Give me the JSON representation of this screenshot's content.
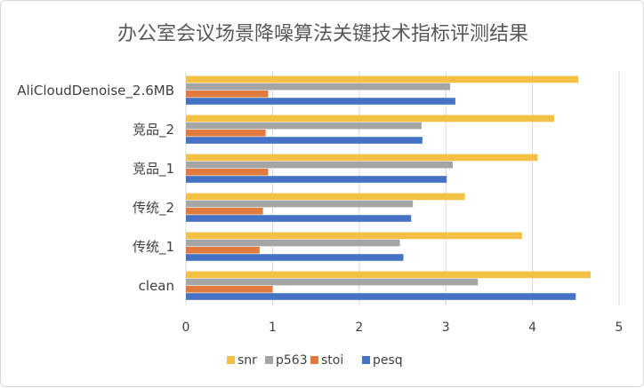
{
  "chart_data": {
    "type": "bar",
    "orientation": "horizontal",
    "title": "办公室会议场景降噪算法关键技术指标评测结果",
    "categories": [
      "AliCloudDenoise_2.6MB",
      "竞品_2",
      "竞品_1",
      "传统_2",
      "传统_1",
      "clean"
    ],
    "xlim": [
      0,
      5
    ],
    "xticks": [
      "0",
      "1",
      "2",
      "3",
      "4",
      "5"
    ],
    "grid": true,
    "legend_position": "bottom",
    "series": [
      {
        "name": "snr",
        "color": "#F2C042",
        "values": [
          4.53,
          4.25,
          4.06,
          3.22,
          3.88,
          4.67
        ]
      },
      {
        "name": "p563",
        "color": "#A5A5A5",
        "values": [
          3.05,
          2.72,
          3.08,
          2.62,
          2.47,
          3.37
        ]
      },
      {
        "name": "stoi",
        "color": "#E27A3E",
        "values": [
          0.95,
          0.92,
          0.95,
          0.89,
          0.85,
          1.0
        ]
      },
      {
        "name": "pesq",
        "color": "#4472C4",
        "values": [
          3.11,
          2.73,
          3.01,
          2.6,
          2.51,
          4.5
        ]
      }
    ]
  }
}
